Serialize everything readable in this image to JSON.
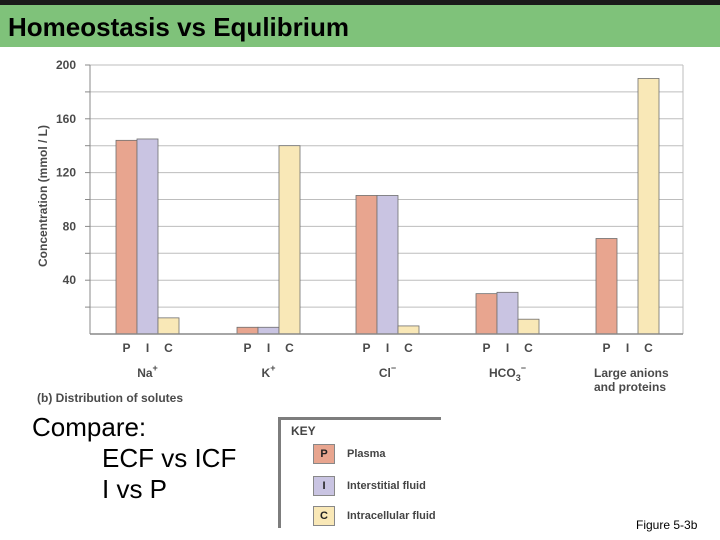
{
  "slide": {
    "title": "Homeostasis vs Equlibrium",
    "compare_lines": [
      "Compare:",
      "ECF vs ICF",
      "I vs P"
    ],
    "figure_ref": "Figure 5-3b"
  },
  "colors": {
    "plasma": "#e8a58f",
    "interstitial": "#c9c4e2",
    "intracellular": "#f9e8b7",
    "title_bar": "#7fc27a",
    "swatch_border": "#888888"
  },
  "key": {
    "title": "KEY",
    "items": [
      {
        "letter": "P",
        "label": "Plasma",
        "color": "#e8a58f"
      },
      {
        "letter": "I",
        "label": "Interstitial fluid",
        "color": "#c9c4e2"
      },
      {
        "letter": "C",
        "label": "Intracellular fluid",
        "color": "#f9e8b7"
      }
    ]
  },
  "chart_data": {
    "type": "bar",
    "caption": "(b) Distribution of solutes",
    "ylabel": "Concentration (mmol / L)",
    "xlabel": "",
    "ylim": [
      0,
      200
    ],
    "yticks": [
      40,
      80,
      120,
      160,
      200
    ],
    "grid": true,
    "legend": "bottom",
    "bar_letters": [
      "P",
      "I",
      "C"
    ],
    "categories": [
      {
        "name": "Na",
        "sup": "+",
        "sub": ""
      },
      {
        "name": "K",
        "sup": "+",
        "sub": ""
      },
      {
        "name": "Cl",
        "sup": "−",
        "sub": ""
      },
      {
        "name": "HCO",
        "sub": "3",
        "sup": "−"
      },
      {
        "name": "Large anions",
        "line2": "and proteins",
        "sub": "",
        "sup": ""
      }
    ],
    "series": [
      {
        "name": "Plasma",
        "values": [
          144,
          5,
          103,
          30,
          71
        ]
      },
      {
        "name": "Interstitial fluid",
        "values": [
          145,
          5,
          103,
          31,
          null
        ]
      },
      {
        "name": "Intracellular fluid",
        "values": [
          12,
          140,
          6,
          11,
          190
        ]
      }
    ]
  }
}
